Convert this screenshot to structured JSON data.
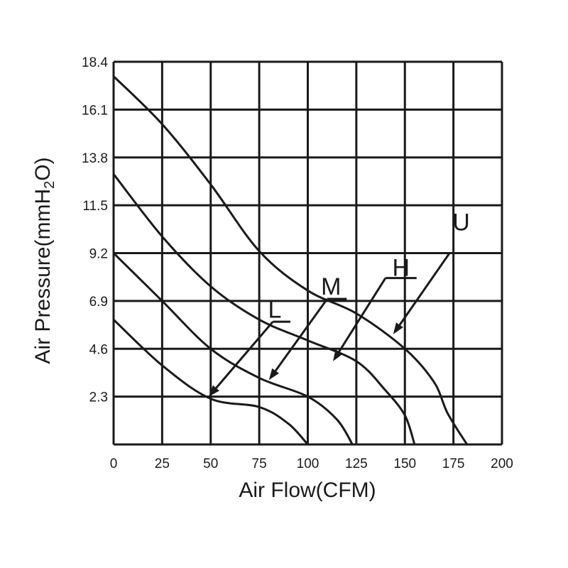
{
  "chart_data": {
    "type": "line",
    "xlabel": "Air Flow(CFM)",
    "ylabel": "Air Pressure(mmH2O)",
    "ylabel_main": "Air Pressure(mmH",
    "ylabel_sub": "2",
    "ylabel_tail": "O)",
    "xlim": [
      0,
      200
    ],
    "ylim": [
      0,
      18.4
    ],
    "x_ticks": [
      "0",
      "25",
      "50",
      "75",
      "100",
      "125",
      "150",
      "175",
      "200"
    ],
    "x_tick_values": [
      0,
      25,
      50,
      75,
      100,
      125,
      150,
      175,
      200
    ],
    "y_ticks": [
      "2.3",
      "4.6",
      "6.9",
      "9.2",
      "11.5",
      "13.8",
      "16.1",
      "18.4"
    ],
    "y_tick_values": [
      2.3,
      4.6,
      6.9,
      9.2,
      11.5,
      13.8,
      16.1,
      18.4
    ],
    "grid": true,
    "series": [
      {
        "name": "U",
        "points": [
          [
            0,
            17.7
          ],
          [
            25,
            15.4
          ],
          [
            50,
            12.5
          ],
          [
            75,
            9.3
          ],
          [
            100,
            7.4
          ],
          [
            125,
            6.3
          ],
          [
            150,
            4.6
          ],
          [
            165,
            3.0
          ],
          [
            172,
            1.5
          ],
          [
            182,
            0
          ]
        ],
        "label_at": [
          179,
          10.3
        ],
        "arrow_from": [
          173,
          9.2
        ],
        "arrow_to": [
          144,
          5.3
        ]
      },
      {
        "name": "H",
        "points": [
          [
            0,
            13.0
          ],
          [
            25,
            10.0
          ],
          [
            50,
            7.6
          ],
          [
            75,
            6.0
          ],
          [
            100,
            5.0
          ],
          [
            125,
            4.0
          ],
          [
            140,
            2.6
          ],
          [
            150,
            1.4
          ],
          [
            155,
            0
          ]
        ],
        "label_at": [
          148,
          8.1
        ],
        "arrow_from": [
          140,
          8.0
        ],
        "arrow_to": [
          113,
          4.0
        ]
      },
      {
        "name": "M",
        "points": [
          [
            0,
            9.2
          ],
          [
            25,
            6.9
          ],
          [
            50,
            4.6
          ],
          [
            75,
            3.2
          ],
          [
            100,
            2.3
          ],
          [
            115,
            1.2
          ],
          [
            123,
            0
          ]
        ],
        "label_at": [
          112,
          7.2
        ],
        "arrow_from": [
          110,
          7.0
        ],
        "arrow_to": [
          80,
          3.1
        ]
      },
      {
        "name": "L",
        "points": [
          [
            0,
            6.0
          ],
          [
            25,
            3.8
          ],
          [
            50,
            2.2
          ],
          [
            75,
            1.8
          ],
          [
            90,
            1.0
          ],
          [
            100,
            0
          ]
        ],
        "label_at": [
          83,
          6.1
        ],
        "arrow_from": [
          82,
          5.9
        ],
        "arrow_to": [
          49,
          2.3
        ]
      }
    ]
  }
}
